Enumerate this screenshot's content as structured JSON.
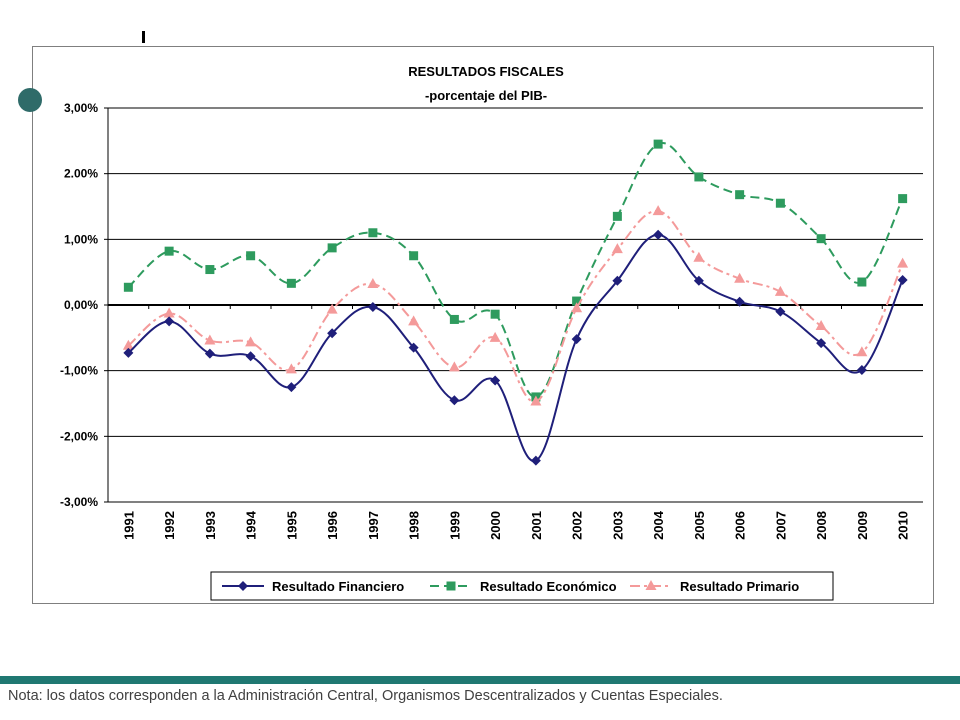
{
  "footer": {
    "note": "Nota: los datos corresponden a la Administración Central, Organismos Descentralizados y Cuentas Especiales."
  },
  "chart_data": {
    "type": "line",
    "title": "RESULTADOS FISCALES",
    "subtitle": "-porcentaje del PIB-",
    "xlabel": "",
    "ylabel": "",
    "ylim": [
      -3,
      3
    ],
    "y_ticks": [
      {
        "value": 3,
        "label": "3,00%"
      },
      {
        "value": 2,
        "label": "2.00%"
      },
      {
        "value": 1,
        "label": "1,00%"
      },
      {
        "value": 0,
        "label": "0,00%"
      },
      {
        "value": -1,
        "label": "-1,00%"
      },
      {
        "value": -2,
        "label": "-2,00%"
      },
      {
        "value": -3,
        "label": "-3,00%"
      }
    ],
    "categories": [
      "1991",
      "1992",
      "1993",
      "1994",
      "1995",
      "1996",
      "1997",
      "1998",
      "1999",
      "2000",
      "2001",
      "2002",
      "2003",
      "2004",
      "2005",
      "2006",
      "2007",
      "2008",
      "2009",
      "2010"
    ],
    "grid": true,
    "legend_position": "bottom",
    "series": [
      {
        "name": "Resultado Financiero",
        "color": "#1f1f7a",
        "marker": "diamond",
        "dash": "solid",
        "values": [
          -0.73,
          -0.25,
          -0.74,
          -0.78,
          -1.25,
          -0.43,
          -0.03,
          -0.65,
          -1.45,
          -1.15,
          -2.37,
          -0.52,
          0.37,
          1.07,
          0.37,
          0.05,
          -0.1,
          -0.58,
          -0.99,
          0.38
        ]
      },
      {
        "name": "Resultado Económico",
        "color": "#2e9b5e",
        "marker": "square",
        "dash": "dashed",
        "values": [
          0.27,
          0.82,
          0.54,
          0.75,
          0.33,
          0.87,
          1.1,
          0.75,
          -0.22,
          -0.14,
          -1.4,
          0.06,
          1.35,
          2.45,
          1.95,
          1.68,
          1.55,
          1.01,
          0.35,
          1.62
        ]
      },
      {
        "name": "Resultado Primario",
        "color": "#f49a9a",
        "marker": "triangle",
        "dash": "dashdot",
        "values": [
          -0.62,
          -0.13,
          -0.54,
          -0.57,
          -0.98,
          -0.07,
          0.32,
          -0.25,
          -0.95,
          -0.5,
          -1.47,
          -0.05,
          0.85,
          1.43,
          0.72,
          0.4,
          0.2,
          -0.32,
          -0.72,
          0.63
        ]
      }
    ]
  }
}
